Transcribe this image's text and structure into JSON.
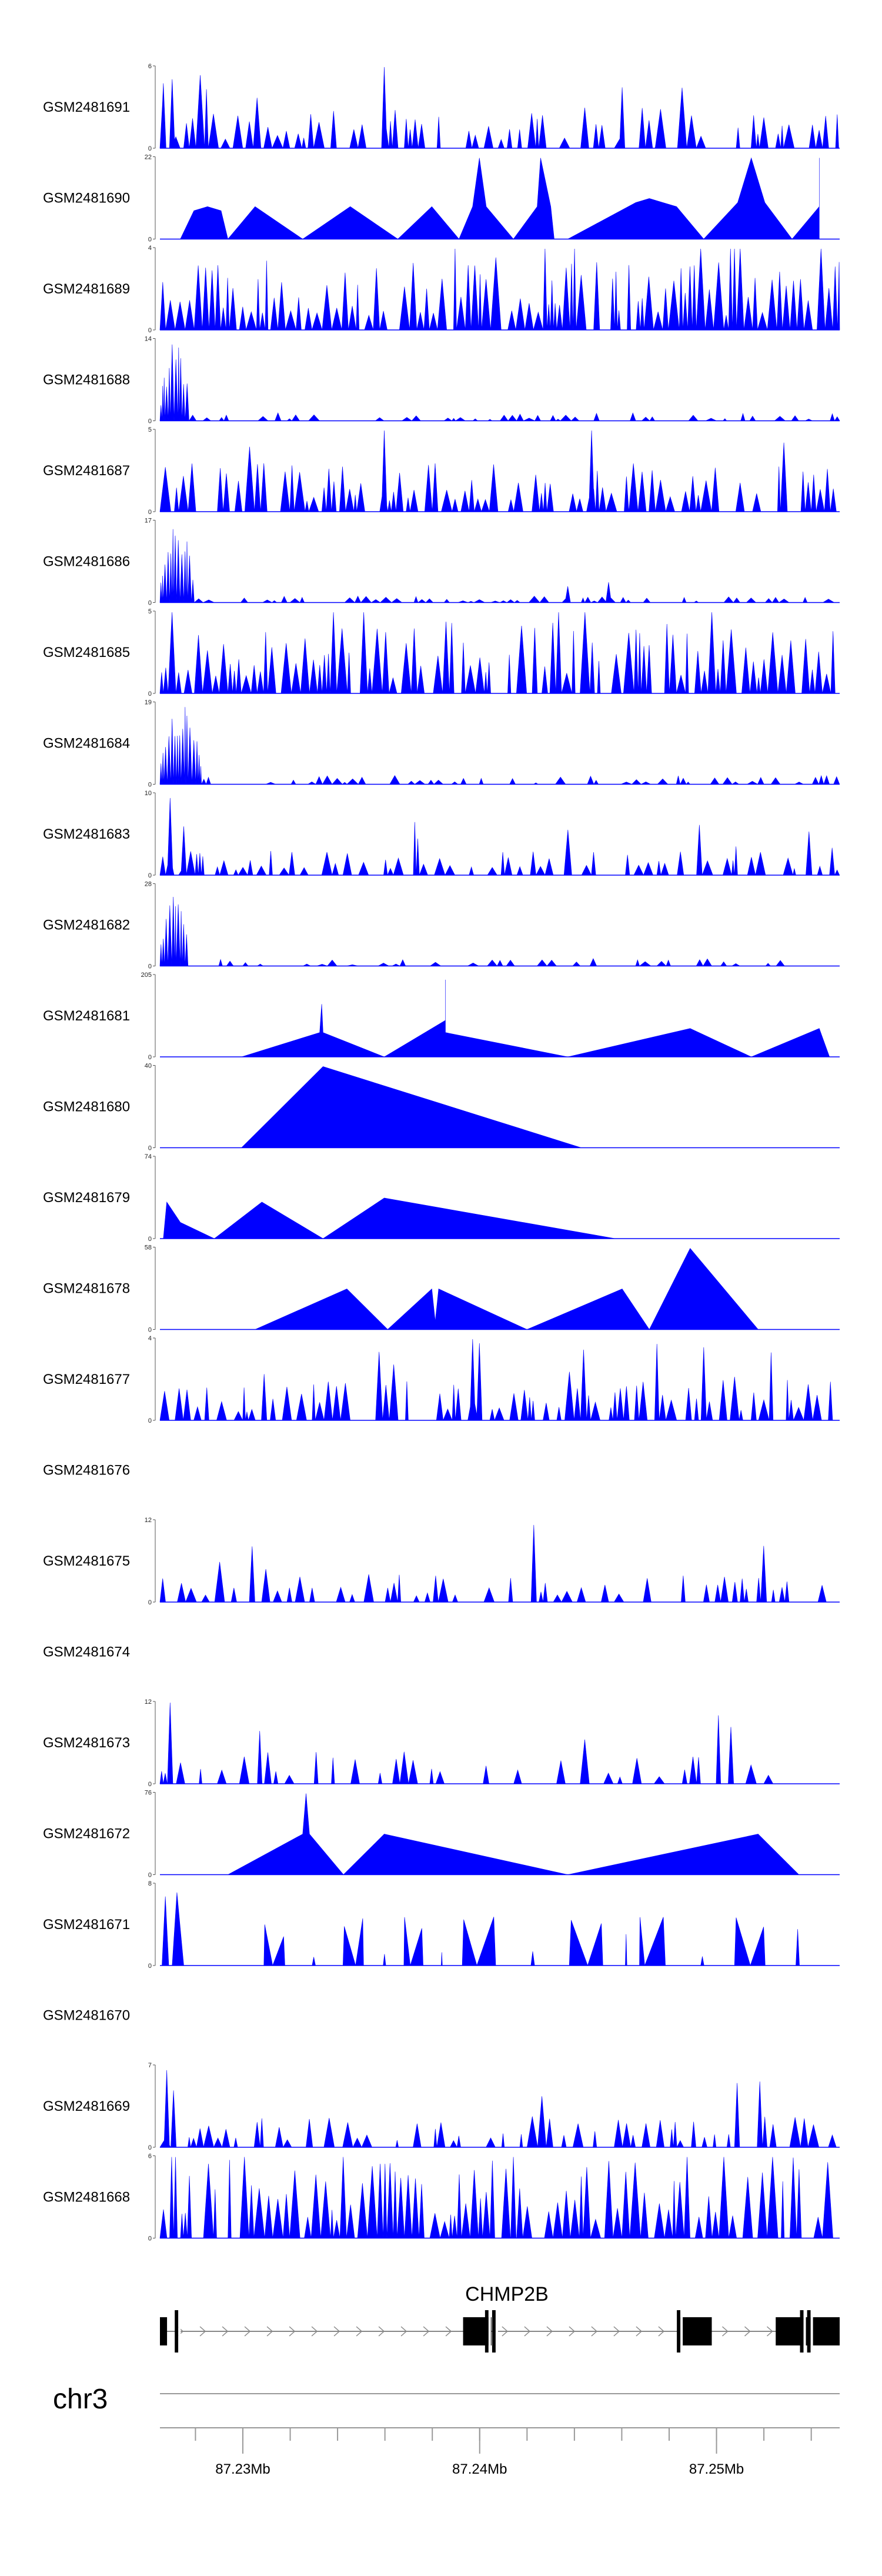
{
  "chart_data": {
    "type": "area",
    "title": "",
    "color": "#0000ff",
    "region": {
      "chromosome": "chr3",
      "start_mb": 87.2265,
      "end_mb": 87.2552
    },
    "axis": {
      "chromosome_label": "chr3",
      "major_ticks": [
        {
          "value": 87.23,
          "label": "87.23Mb"
        },
        {
          "value": 87.24,
          "label": "87.24Mb"
        },
        {
          "value": 87.25,
          "label": "87.25Mb"
        }
      ],
      "minor_step_mb": 0.002
    },
    "gene": {
      "name": "CHMP2B",
      "strand": "+",
      "exons": [
        [
          87.2265,
          87.2268
        ],
        [
          87.2393,
          87.2405
        ],
        [
          87.2484,
          87.2498
        ],
        [
          87.2525,
          87.2552
        ]
      ],
      "thin_lines": [
        87.2272,
        87.2403,
        87.2406,
        87.2484,
        87.2536,
        87.2539
      ]
    },
    "tracks": [
      {
        "name": "GSM2481691",
        "ymax": 6,
        "style": "dense",
        "seed": 11,
        "density": 0.55,
        "base": 0.25,
        "spikes": [
          [
            0.005,
            0.8
          ],
          [
            0.018,
            0.85
          ],
          [
            0.33,
            1.0
          ],
          [
            0.68,
            0.75
          ]
        ],
        "empty": false
      },
      {
        "name": "GSM2481690",
        "ymax": 22,
        "style": "sparse",
        "points": [
          [
            0.03,
            0
          ],
          [
            0.05,
            0.35
          ],
          [
            0.07,
            0.4
          ],
          [
            0.09,
            0.35
          ],
          [
            0.1,
            0
          ],
          [
            0.14,
            0.4
          ],
          [
            0.21,
            0
          ],
          [
            0.28,
            0.4
          ],
          [
            0.35,
            0
          ],
          [
            0.4,
            0.4
          ],
          [
            0.44,
            0
          ],
          [
            0.46,
            0.4
          ],
          [
            0.47,
            1.0
          ],
          [
            0.48,
            0.4
          ],
          [
            0.52,
            0
          ],
          [
            0.555,
            0.4
          ],
          [
            0.56,
            1.0
          ],
          [
            0.575,
            0.4
          ],
          [
            0.58,
            0
          ],
          [
            0.6,
            0
          ],
          [
            0.7,
            0.45
          ],
          [
            0.72,
            0.5
          ],
          [
            0.74,
            0.45
          ],
          [
            0.76,
            0.4
          ],
          [
            0.8,
            0
          ],
          [
            0.85,
            0.45
          ],
          [
            0.87,
            1.0
          ],
          [
            0.89,
            0.45
          ],
          [
            0.93,
            0
          ],
          [
            0.97,
            0.4
          ],
          [
            0.97,
            1.0
          ]
        ],
        "empty": false
      },
      {
        "name": "GSM2481689",
        "ymax": 4,
        "style": "dense",
        "seed": 23,
        "density": 0.75,
        "base": 0.45,
        "spikes": [],
        "empty": false
      },
      {
        "name": "GSM2481688",
        "ymax": 14,
        "style": "early",
        "seed": 31,
        "density": 0.4,
        "base": 0.05,
        "peak_end": 0.04,
        "spikes": [],
        "empty": false
      },
      {
        "name": "GSM2481687",
        "ymax": 5,
        "style": "dense",
        "seed": 41,
        "density": 0.55,
        "base": 0.3,
        "spikes": [
          [
            0.33,
            1.0
          ],
          [
            0.635,
            1.0
          ]
        ],
        "empty": false
      },
      {
        "name": "GSM2481686",
        "ymax": 17,
        "style": "early",
        "seed": 47,
        "density": 0.4,
        "base": 0.04,
        "peak_end": 0.05,
        "spikes": [
          [
            0.6,
            0.2
          ],
          [
            0.66,
            0.25
          ]
        ],
        "empty": false
      },
      {
        "name": "GSM2481685",
        "ymax": 5,
        "style": "dense",
        "seed": 53,
        "density": 0.75,
        "base": 0.45,
        "spikes": [],
        "empty": false
      },
      {
        "name": "GSM2481684",
        "ymax": 19,
        "style": "early",
        "seed": 59,
        "density": 0.4,
        "base": 0.06,
        "peak_end": 0.06,
        "spikes": [],
        "empty": false
      },
      {
        "name": "GSM2481683",
        "ymax": 10,
        "style": "dense",
        "seed": 67,
        "density": 0.5,
        "base": 0.15,
        "spikes": [
          [
            0.015,
            0.95
          ],
          [
            0.035,
            0.6
          ]
        ],
        "empty": false
      },
      {
        "name": "GSM2481682",
        "ymax": 28,
        "style": "early",
        "seed": 71,
        "density": 0.3,
        "base": 0.05,
        "peak_end": 0.04,
        "spikes": [],
        "empty": false
      },
      {
        "name": "GSM2481681",
        "ymax": 205,
        "style": "sparse",
        "points": [
          [
            0.12,
            0
          ],
          [
            0.235,
            0.3
          ],
          [
            0.238,
            0.65
          ],
          [
            0.24,
            0.3
          ],
          [
            0.33,
            0
          ],
          [
            0.42,
            0.45
          ],
          [
            0.42,
            0.95
          ],
          [
            0.42,
            0.3
          ],
          [
            0.6,
            0
          ],
          [
            0.78,
            0.35
          ],
          [
            0.87,
            0
          ],
          [
            0.97,
            0.35
          ],
          [
            0.985,
            0
          ]
        ],
        "empty": false
      },
      {
        "name": "GSM2481680",
        "ymax": 40,
        "style": "sparse",
        "points": [
          [
            0.12,
            0
          ],
          [
            0.24,
            1.0
          ],
          [
            0.62,
            0
          ]
        ],
        "empty": false
      },
      {
        "name": "GSM2481679",
        "ymax": 74,
        "style": "sparse",
        "points": [
          [
            0.005,
            0
          ],
          [
            0.01,
            0.45
          ],
          [
            0.03,
            0.2
          ],
          [
            0.08,
            0
          ],
          [
            0.15,
            0.45
          ],
          [
            0.24,
            0
          ],
          [
            0.33,
            0.5
          ],
          [
            0.67,
            0
          ]
        ],
        "empty": false
      },
      {
        "name": "GSM2481678",
        "ymax": 58,
        "style": "sparse",
        "points": [
          [
            0.14,
            0
          ],
          [
            0.275,
            0.5
          ],
          [
            0.335,
            0
          ],
          [
            0.4,
            0.5
          ],
          [
            0.405,
            0.1
          ],
          [
            0.41,
            0.5
          ],
          [
            0.54,
            0
          ],
          [
            0.68,
            0.5
          ],
          [
            0.72,
            0
          ],
          [
            0.78,
            1.0
          ],
          [
            0.88,
            0
          ]
        ],
        "empty": false
      },
      {
        "name": "GSM2481677",
        "ymax": 4,
        "style": "dense",
        "seed": 83,
        "density": 0.55,
        "base": 0.25,
        "spikes": [
          [
            0.46,
            1.0
          ],
          [
            0.47,
            0.95
          ],
          [
            0.8,
            0.9
          ]
        ],
        "empty": false
      },
      {
        "name": "GSM2481676",
        "ymax": null,
        "style": "empty",
        "empty": true
      },
      {
        "name": "GSM2481675",
        "ymax": 12,
        "style": "dense",
        "seed": 89,
        "density": 0.4,
        "base": 0.18,
        "spikes": [
          [
            0.55,
            0.95
          ]
        ],
        "empty": false
      },
      {
        "name": "GSM2481674",
        "ymax": null,
        "style": "empty",
        "empty": true
      },
      {
        "name": "GSM2481673",
        "ymax": 12,
        "style": "dense",
        "seed": 97,
        "density": 0.3,
        "base": 0.2,
        "spikes": [
          [
            0.015,
            1.0
          ],
          [
            0.84,
            0.7
          ]
        ],
        "empty": false,
        "end": 0.97
      },
      {
        "name": "GSM2481672",
        "ymax": 76,
        "style": "sparse",
        "points": [
          [
            0.1,
            0
          ],
          [
            0.21,
            0.5
          ],
          [
            0.215,
            1.0
          ],
          [
            0.22,
            0.5
          ],
          [
            0.27,
            0
          ],
          [
            0.33,
            0.5
          ],
          [
            0.6,
            0
          ],
          [
            0.88,
            0.5
          ],
          [
            0.94,
            0
          ]
        ],
        "empty": false
      },
      {
        "name": "GSM2481671",
        "ymax": 8,
        "style": "tri",
        "seed": 103,
        "empty": false
      },
      {
        "name": "GSM2481670",
        "ymax": null,
        "style": "empty",
        "empty": true
      },
      {
        "name": "GSM2481669",
        "ymax": 7,
        "style": "dense",
        "seed": 107,
        "density": 0.45,
        "base": 0.2,
        "spikes": [
          [
            0.01,
            0.95
          ],
          [
            0.02,
            0.7
          ]
        ],
        "empty": false
      },
      {
        "name": "GSM2481668",
        "ymax": 6,
        "style": "dense",
        "seed": 113,
        "density": 0.65,
        "base": 0.5,
        "spikes": [
          [
            0.52,
            1.0
          ]
        ],
        "empty": false
      }
    ]
  }
}
